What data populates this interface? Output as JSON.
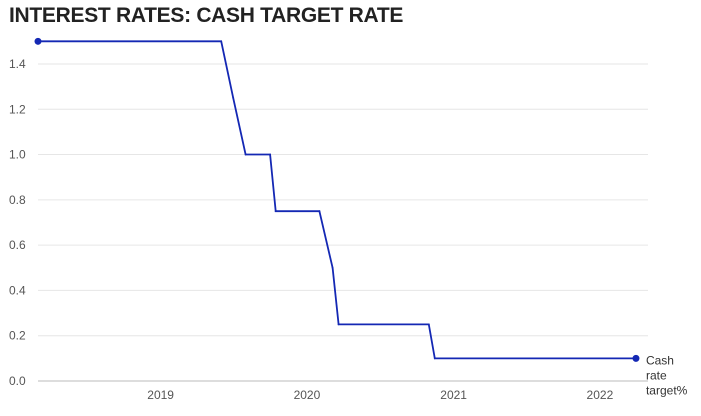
{
  "chart_data": {
    "type": "line",
    "title": "INTEREST RATES: CASH TARGET RATE",
    "xlabel": "",
    "ylabel": "",
    "x_ticks": [
      "2019",
      "2020",
      "2021",
      "2022"
    ],
    "y_ticks": [
      "0.0",
      "0.2",
      "0.4",
      "0.6",
      "0.8",
      "1.0",
      "1.2",
      "1.4"
    ],
    "xlim": [
      "2018-03-01",
      "2022-05-01"
    ],
    "ylim": [
      0,
      1.55
    ],
    "grid": true,
    "legend": "end-label",
    "series": [
      {
        "name": "Cash rate target%",
        "color": "#1428b4",
        "points": [
          {
            "x": "2018-03-01",
            "y": 1.5
          },
          {
            "x": "2019-06-01",
            "y": 1.5
          },
          {
            "x": "2019-07-01",
            "y": 1.25
          },
          {
            "x": "2019-08-01",
            "y": 1.0
          },
          {
            "x": "2019-10-01",
            "y": 1.0
          },
          {
            "x": "2019-10-15",
            "y": 0.75
          },
          {
            "x": "2020-02-01",
            "y": 0.75
          },
          {
            "x": "2020-03-05",
            "y": 0.5
          },
          {
            "x": "2020-03-20",
            "y": 0.25
          },
          {
            "x": "2020-10-31",
            "y": 0.25
          },
          {
            "x": "2020-11-15",
            "y": 0.1
          },
          {
            "x": "2022-04-01",
            "y": 0.1
          }
        ]
      }
    ]
  }
}
